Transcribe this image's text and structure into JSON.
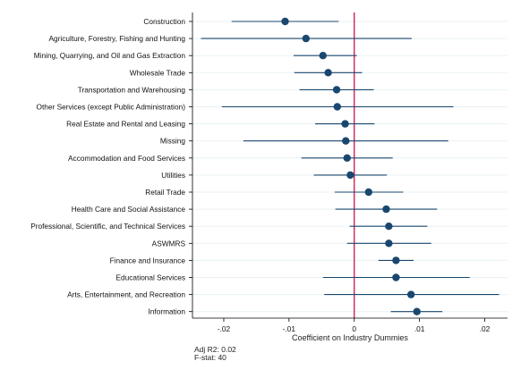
{
  "chart_data": {
    "type": "scatter",
    "title": "",
    "xlabel": "Coefficient on Industry Dummies",
    "ylabel": "",
    "xlim": [
      -0.0248,
      0.0235
    ],
    "xticks": [
      -0.02,
      -0.01,
      0,
      0.01,
      0.02
    ],
    "xtick_labels": [
      "-.02",
      "-.01",
      "0",
      ".01",
      ".02"
    ],
    "reference_line_x": 0,
    "grid": "horizontal",
    "categories": [
      "Construction",
      "Agriculture, Forestry, Fishing and Hunting",
      "Mining, Quarrying, and Oil and Gas Extraction",
      "Wholesale Trade",
      "Transportation and Warehousing",
      "Other Services (except Public Administration)",
      "Real Estate and Rental and Leasing",
      "Missing",
      "Accommodation and Food Services",
      "Utilities",
      "Retail Trade",
      "Health Care and Social Assistance",
      "Professional, Scientific, and Technical Services",
      "ASWMRS",
      "Finance and Insurance",
      "Educational Services",
      "Arts, Entertainment, and Recreation",
      "Information"
    ],
    "series": [
      {
        "estimates": [
          -0.0106,
          -0.0074,
          -0.0048,
          -0.004,
          -0.0027,
          -0.0026,
          -0.0014,
          -0.0013,
          -0.0011,
          -0.0006,
          0.0022,
          0.0049,
          0.0053,
          0.0053,
          0.0064,
          0.0064,
          0.0087,
          0.0096
        ],
        "ci_low": [
          -0.0188,
          -0.0235,
          -0.0093,
          -0.0092,
          -0.0084,
          -0.0203,
          -0.006,
          -0.017,
          -0.0081,
          -0.0062,
          -0.003,
          -0.0029,
          -0.0007,
          -0.0011,
          0.0037,
          -0.0048,
          -0.0046,
          0.0056
        ],
        "ci_high": [
          -0.0024,
          0.0088,
          0.0004,
          0.0012,
          0.003,
          0.0152,
          0.0031,
          0.0144,
          0.0059,
          0.005,
          0.0075,
          0.0127,
          0.0112,
          0.0118,
          0.0091,
          0.0177,
          0.0222,
          0.0135
        ]
      }
    ],
    "colors": {
      "marker": "#1a476f",
      "reference_line": "#c8003c",
      "grid": "#eaf2f3",
      "axis": "#000000"
    }
  },
  "stats": {
    "adj_r2": "Adj R2: 0.02",
    "fstat": "F-stat: 40"
  }
}
